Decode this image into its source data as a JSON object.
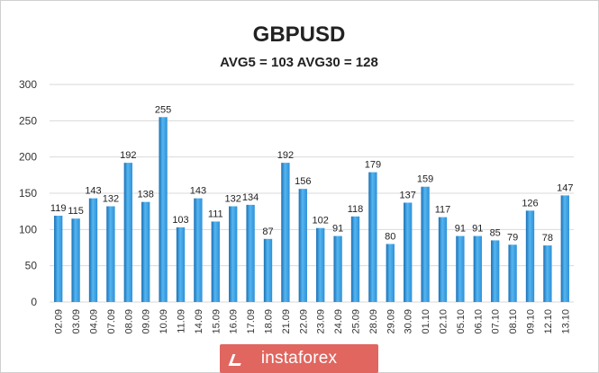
{
  "chart_data": {
    "type": "bar",
    "title": "GBPUSD",
    "subtitle": "AVG5 = 103 AVG30 = 128",
    "categories": [
      "02.09",
      "03.09",
      "04.09",
      "07.09",
      "08.09",
      "09.09",
      "10.09",
      "11.09",
      "14.09",
      "15.09",
      "16.09",
      "17.09",
      "18.09",
      "21.09",
      "22.09",
      "23.09",
      "24.09",
      "25.09",
      "28.09",
      "29.09",
      "30.09",
      "01.10",
      "02.10",
      "05.10",
      "06.10",
      "07.10",
      "08.10",
      "09.10",
      "12.10",
      "13.10"
    ],
    "values": [
      119,
      115,
      143,
      132,
      192,
      138,
      255,
      103,
      143,
      111,
      132,
      134,
      87,
      192,
      156,
      102,
      91,
      118,
      179,
      80,
      137,
      159,
      117,
      91,
      91,
      85,
      79,
      126,
      78,
      147
    ],
    "ylim": [
      0,
      300
    ],
    "yticks": [
      "0",
      "50",
      "100",
      "150",
      "200",
      "250",
      "300"
    ],
    "grid": true,
    "legend": "none",
    "bar_color": "#2e8fd8",
    "bar_color_light": "#55b6f0",
    "bar_color_dark": "#1a6fb5"
  },
  "watermark": {
    "text": "instaforex",
    "color": "#e0665f"
  }
}
